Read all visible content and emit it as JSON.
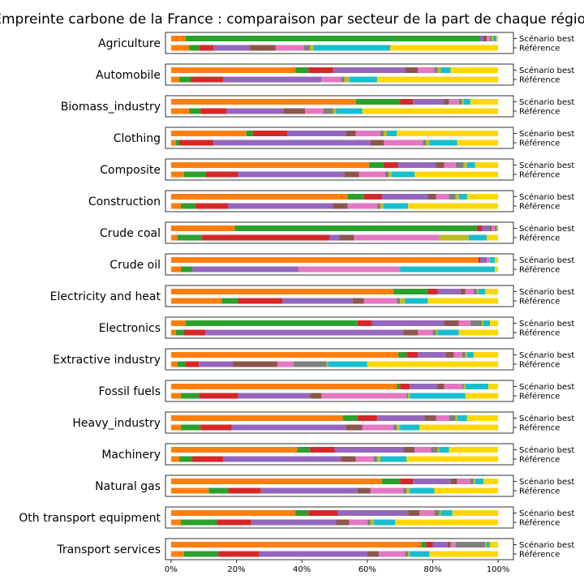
{
  "chart_data": {
    "type": "bar",
    "orientation": "horizontal",
    "stacked": true,
    "title": "Empreinte carbone de la France : comparaison par secteur de la part de chaque région",
    "row_labels": [
      "Scénario best",
      "Référence"
    ],
    "x_ticks": [
      "0%",
      "20%",
      "40%",
      "60%",
      "80%",
      "100%"
    ],
    "xlim": [
      0,
      1
    ],
    "legend": "none",
    "segment_colors": [
      "#ff7f0e",
      "#2ca02c",
      "#d62728",
      "#9467bd",
      "#8c564b",
      "#e377c2",
      "#7f7f7f",
      "#bcbd22",
      "#17becf",
      "#ffd700"
    ],
    "sectors": [
      {
        "name": "Agriculture",
        "best": [
          0.045,
          0.9,
          0.0,
          0.01,
          0.01,
          0.01,
          0.005,
          0.005,
          0.01,
          0.005
        ],
        "reference": [
          0.055,
          0.03,
          0.045,
          0.11,
          0.08,
          0.085,
          0.02,
          0.01,
          0.235,
          0.33
        ]
      },
      {
        "name": "Automobile",
        "best": [
          0.38,
          0.04,
          0.075,
          0.22,
          0.04,
          0.05,
          0.01,
          0.01,
          0.03,
          0.145
        ],
        "reference": [
          0.025,
          0.035,
          0.1,
          0.3,
          0.0,
          0.06,
          0.01,
          0.015,
          0.085,
          0.37
        ]
      },
      {
        "name": "Biomass_industry",
        "best": [
          0.565,
          0.135,
          0.04,
          0.095,
          0.015,
          0.03,
          0.01,
          0.005,
          0.02,
          0.085
        ],
        "reference": [
          0.055,
          0.035,
          0.08,
          0.175,
          0.065,
          0.055,
          0.03,
          0.01,
          0.08,
          0.415
        ]
      },
      {
        "name": "Clothing",
        "best": [
          0.23,
          0.02,
          0.105,
          0.18,
          0.03,
          0.075,
          0.01,
          0.01,
          0.03,
          0.31
        ],
        "reference": [
          0.015,
          0.01,
          0.105,
          0.48,
          0.04,
          0.12,
          0.01,
          0.01,
          0.085,
          0.125
        ]
      },
      {
        "name": "Composite",
        "best": [
          0.605,
          0.045,
          0.045,
          0.115,
          0.025,
          0.035,
          0.025,
          0.01,
          0.025,
          0.07
        ],
        "reference": [
          0.04,
          0.065,
          0.1,
          0.325,
          0.045,
          0.08,
          0.01,
          0.01,
          0.07,
          0.255
        ]
      },
      {
        "name": "Construction",
        "best": [
          0.54,
          0.05,
          0.055,
          0.14,
          0.025,
          0.04,
          0.02,
          0.01,
          0.025,
          0.095
        ],
        "reference": [
          0.03,
          0.045,
          0.1,
          0.32,
          0.045,
          0.09,
          0.01,
          0.01,
          0.075,
          0.275
        ]
      },
      {
        "name": "Crude coal",
        "best": [
          0.195,
          0.74,
          0.015,
          0.025,
          0.005,
          0.01,
          0.005,
          0.005,
          0.0,
          0.0
        ],
        "reference": [
          0.02,
          0.075,
          0.39,
          0.03,
          0.045,
          0.26,
          0.0,
          0.09,
          0.055,
          0.035
        ]
      },
      {
        "name": "Crude oil",
        "best": [
          0.94,
          0.0,
          0.005,
          0.02,
          0.0,
          0.01,
          0.0,
          0.0,
          0.015,
          0.01
        ],
        "reference": [
          0.03,
          0.035,
          0.0,
          0.325,
          0.0,
          0.31,
          0.0,
          0.0,
          0.29,
          0.01
        ]
      },
      {
        "name": "Electricity and heat",
        "best": [
          0.68,
          0.105,
          0.03,
          0.07,
          0.015,
          0.025,
          0.01,
          0.005,
          0.02,
          0.04
        ],
        "reference": [
          0.155,
          0.05,
          0.135,
          0.215,
          0.035,
          0.1,
          0.01,
          0.015,
          0.07,
          0.215
        ]
      },
      {
        "name": "Electronics",
        "best": [
          0.045,
          0.525,
          0.045,
          0.22,
          0.045,
          0.035,
          0.035,
          0.005,
          0.02,
          0.025
        ],
        "reference": [
          0.015,
          0.025,
          0.065,
          0.605,
          0.045,
          0.045,
          0.01,
          0.005,
          0.065,
          0.12
        ]
      },
      {
        "name": "Extractive industry",
        "best": [
          0.695,
          0.025,
          0.035,
          0.085,
          0.025,
          0.025,
          0.01,
          0.005,
          0.02,
          0.075
        ],
        "reference": [
          0.02,
          0.025,
          0.04,
          0.105,
          0.135,
          0.05,
          0.1,
          0.005,
          0.12,
          0.4
        ]
      },
      {
        "name": "Fossil fuels",
        "best": [
          0.69,
          0.01,
          0.03,
          0.085,
          0.02,
          0.055,
          0.005,
          0.005,
          0.07,
          0.03
        ],
        "reference": [
          0.03,
          0.055,
          0.12,
          0.22,
          0.035,
          0.26,
          0.005,
          0.005,
          0.17,
          0.1
        ]
      },
      {
        "name": "Heavy_industry",
        "best": [
          0.525,
          0.045,
          0.06,
          0.145,
          0.035,
          0.04,
          0.02,
          0.005,
          0.03,
          0.095
        ],
        "reference": [
          0.03,
          0.06,
          0.095,
          0.35,
          0.05,
          0.095,
          0.01,
          0.01,
          0.06,
          0.24
        ]
      },
      {
        "name": "Machinery",
        "best": [
          0.385,
          0.04,
          0.075,
          0.21,
          0.035,
          0.05,
          0.02,
          0.005,
          0.03,
          0.15
        ],
        "reference": [
          0.025,
          0.04,
          0.095,
          0.36,
          0.045,
          0.055,
          0.01,
          0.01,
          0.08,
          0.28
        ]
      },
      {
        "name": "Natural gas",
        "best": [
          0.645,
          0.055,
          0.04,
          0.115,
          0.02,
          0.04,
          0.01,
          0.005,
          0.025,
          0.045
        ],
        "reference": [
          0.115,
          0.06,
          0.1,
          0.295,
          0.04,
          0.1,
          0.01,
          0.01,
          0.075,
          0.195
        ]
      },
      {
        "name": "Oth transport equipment",
        "best": [
          0.38,
          0.04,
          0.09,
          0.215,
          0.035,
          0.045,
          0.015,
          0.005,
          0.035,
          0.14
        ],
        "reference": [
          0.03,
          0.11,
          0.105,
          0.26,
          0.04,
          0.055,
          0.01,
          0.01,
          0.065,
          0.315
        ]
      },
      {
        "name": "Transport services",
        "best": [
          0.765,
          0.015,
          0.02,
          0.045,
          0.01,
          0.015,
          0.09,
          0.005,
          0.01,
          0.025
        ],
        "reference": [
          0.04,
          0.105,
          0.125,
          0.33,
          0.035,
          0.08,
          0.01,
          0.005,
          0.06,
          0.21
        ]
      }
    ]
  }
}
